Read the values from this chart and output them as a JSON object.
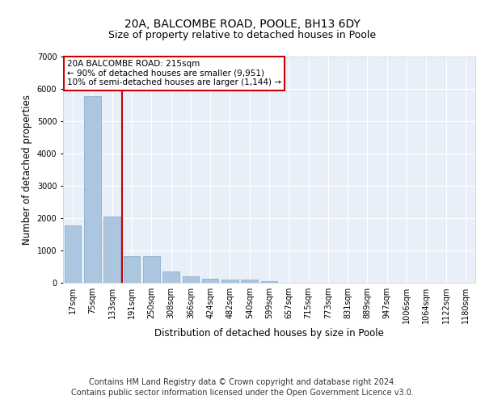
{
  "title": "20A, BALCOMBE ROAD, POOLE, BH13 6DY",
  "subtitle": "Size of property relative to detached houses in Poole",
  "xlabel": "Distribution of detached houses by size in Poole",
  "ylabel": "Number of detached properties",
  "categories": [
    "17sqm",
    "75sqm",
    "133sqm",
    "191sqm",
    "250sqm",
    "308sqm",
    "366sqm",
    "424sqm",
    "482sqm",
    "540sqm",
    "599sqm",
    "657sqm",
    "715sqm",
    "773sqm",
    "831sqm",
    "889sqm",
    "947sqm",
    "1006sqm",
    "1064sqm",
    "1122sqm",
    "1180sqm"
  ],
  "values": [
    1780,
    5780,
    2060,
    830,
    820,
    340,
    200,
    130,
    110,
    90,
    60,
    0,
    0,
    0,
    0,
    0,
    0,
    0,
    0,
    0,
    0
  ],
  "bar_color": "#adc6e0",
  "bar_edge_color": "#7aa8cc",
  "vline_x_index": 3,
  "vline_color": "#cc0000",
  "annotation_box_text": "20A BALCOMBE ROAD: 215sqm\n← 90% of detached houses are smaller (9,951)\n10% of semi-detached houses are larger (1,144) →",
  "annotation_box_color": "#cc0000",
  "ylim": [
    0,
    7000
  ],
  "yticks": [
    0,
    1000,
    2000,
    3000,
    4000,
    5000,
    6000,
    7000
  ],
  "footer_line1": "Contains HM Land Registry data © Crown copyright and database right 2024.",
  "footer_line2": "Contains public sector information licensed under the Open Government Licence v3.0.",
  "bg_color": "#e8eff8",
  "grid_color": "#ffffff",
  "title_fontsize": 10,
  "subtitle_fontsize": 9,
  "axis_label_fontsize": 8.5,
  "tick_fontsize": 7,
  "annotation_fontsize": 7.5,
  "footer_fontsize": 7
}
